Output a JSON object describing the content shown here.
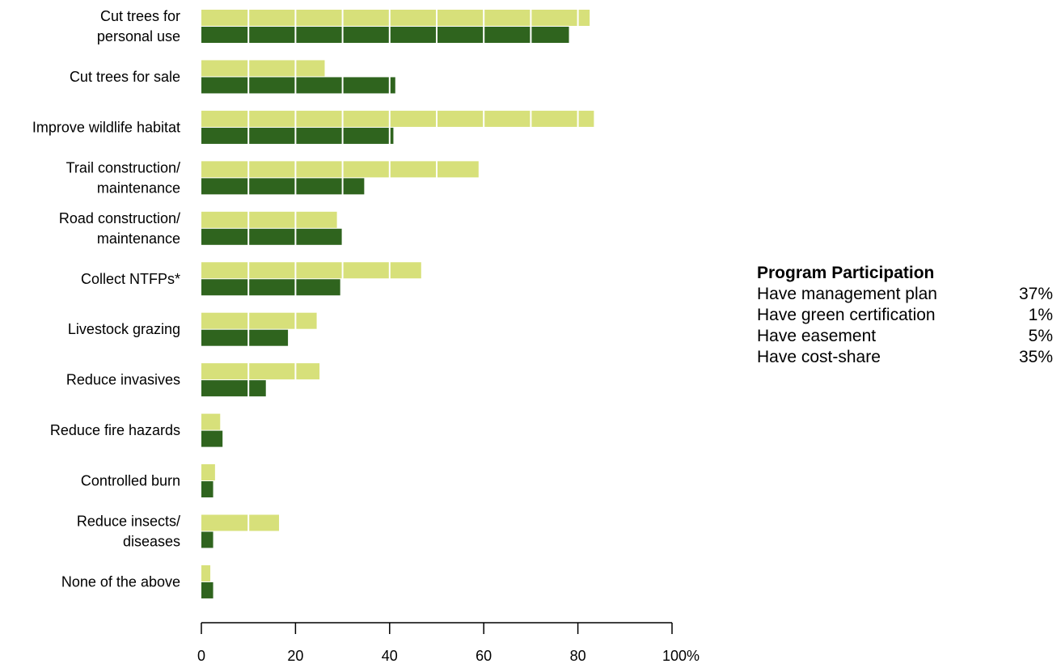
{
  "chart_data": {
    "type": "bar",
    "orientation": "horizontal",
    "categories": [
      [
        "Cut trees for",
        "personal use"
      ],
      [
        "Cut trees for sale"
      ],
      [
        "Improve wildlife habitat"
      ],
      [
        "Trail construction/",
        "maintenance"
      ],
      [
        "Road construction/",
        "maintenance"
      ],
      [
        "Collect NTFPs*"
      ],
      [
        "Livestock grazing"
      ],
      [
        "Reduce invasives"
      ],
      [
        "Reduce fire hazards"
      ],
      [
        "Controlled burn"
      ],
      [
        "Reduce insects/",
        "diseases"
      ],
      [
        "None of the above"
      ]
    ],
    "series": [
      {
        "color": "#d7e07a",
        "values": [
          82.5,
          26.2,
          83.4,
          58.9,
          28.8,
          46.7,
          24.5,
          25.1,
          4.0,
          2.9,
          16.5,
          1.9
        ]
      },
      {
        "color": "#2f641e",
        "values": [
          78.1,
          41.2,
          40.8,
          34.6,
          29.9,
          29.5,
          18.4,
          13.7,
          4.5,
          2.5,
          2.5,
          2.5
        ]
      }
    ],
    "xlim": [
      0,
      100
    ],
    "x_ticks": [
      0,
      20,
      40,
      60,
      80,
      100
    ],
    "x_tick_labels": [
      "0",
      "20",
      "40",
      "60",
      "80",
      "100%"
    ],
    "gridlines": [
      10,
      20,
      30,
      40,
      50,
      60,
      70,
      80,
      90
    ],
    "grid_color": "#ffffff"
  },
  "program_participation": {
    "title": "Program Participation",
    "rows": [
      {
        "label": "Have management plan",
        "value": "37%"
      },
      {
        "label": "Have green certification",
        "value": "1%"
      },
      {
        "label": "Have easement",
        "value": "5%"
      },
      {
        "label": "Have cost-share",
        "value": "35%"
      }
    ]
  }
}
